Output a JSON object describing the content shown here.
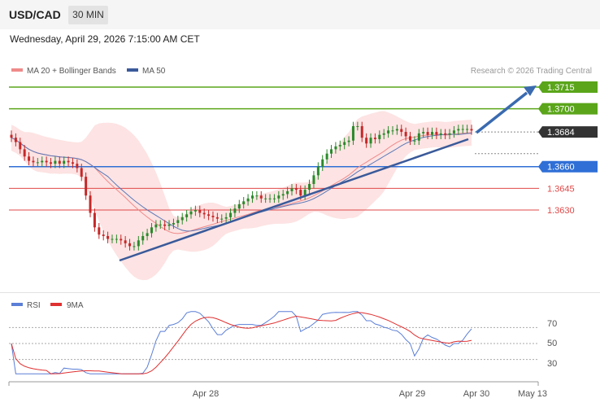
{
  "header": {
    "symbol": "USD/CAD",
    "timeframe": "30 MIN",
    "datetime": "Wednesday, April 29, 2026 7:15:00 AM CET"
  },
  "legend": {
    "ma20": "MA 20 + Bollinger Bands",
    "ma50": "MA 50",
    "ma20_color": "#f08a8a",
    "ma50_color": "#3a5a9a",
    "credit": "Research © 2026 Trading Central"
  },
  "levels": [
    {
      "value": 1.3715,
      "label": "1.3715",
      "color": "#5aa51a",
      "kind": "badge"
    },
    {
      "value": 1.37,
      "label": "1.3700",
      "color": "#5aa51a",
      "kind": "badge"
    },
    {
      "value": 1.3684,
      "label": "1.3684",
      "color": "#333333",
      "kind": "badge-dotted"
    },
    {
      "value": 1.366,
      "label": "1.3660",
      "color": "#2f6fd6",
      "kind": "badge"
    },
    {
      "value": 1.3645,
      "label": "1.3645",
      "color": "#e04848",
      "kind": "text"
    },
    {
      "value": 1.363,
      "label": "1.3630",
      "color": "#e04848",
      "kind": "text"
    }
  ],
  "rsi": {
    "legend_rsi": "RSI",
    "legend_ma": "9MA",
    "rsi_color": "#5b7fd6",
    "ma_color": "#e03030",
    "levels": [
      "70",
      "50",
      "30"
    ]
  },
  "xaxis": {
    "labels": [
      "Apr 28",
      "Apr 29",
      "Apr 30",
      "May 13"
    ]
  },
  "chart_data": {
    "type": "candlestick",
    "ylim": [
      1.3587,
      1.3737
    ],
    "closes": [
      1.368,
      1.3677,
      1.3672,
      1.3667,
      1.3664,
      1.3663,
      1.3663,
      1.3664,
      1.3663,
      1.3662,
      1.3664,
      1.3662,
      1.3664,
      1.3663,
      1.3662,
      1.3659,
      1.3653,
      1.364,
      1.3628,
      1.3618,
      1.3613,
      1.3612,
      1.361,
      1.361,
      1.361,
      1.3609,
      1.3607,
      1.3605,
      1.3605,
      1.3609,
      1.3612,
      1.3614,
      1.3618,
      1.362,
      1.362,
      1.3619,
      1.362,
      1.3621,
      1.3623,
      1.3625,
      1.3627,
      1.3629,
      1.363,
      1.3628,
      1.3627,
      1.3626,
      1.3625,
      1.3624,
      1.3624,
      1.3625,
      1.3628,
      1.3631,
      1.3634,
      1.3636,
      1.3638,
      1.364,
      1.364,
      1.3638,
      1.3638,
      1.3638,
      1.3638,
      1.364,
      1.3641,
      1.3643,
      1.3645,
      1.3644,
      1.364,
      1.3644,
      1.3648,
      1.3654,
      1.366,
      1.3665,
      1.3669,
      1.3672,
      1.3674,
      1.3675,
      1.3677,
      1.3678,
      1.3688,
      1.3688,
      1.368,
      1.3676,
      1.368,
      1.3679,
      1.3682,
      1.3683,
      1.3685,
      1.3685,
      1.3686,
      1.3684,
      1.3681,
      1.3678,
      1.3678,
      1.3683,
      1.3684,
      1.3682,
      1.3684,
      1.3682,
      1.3683,
      1.3682,
      1.3683,
      1.3685,
      1.3686,
      1.3686,
      1.3686,
      1.3685
    ]
  }
}
